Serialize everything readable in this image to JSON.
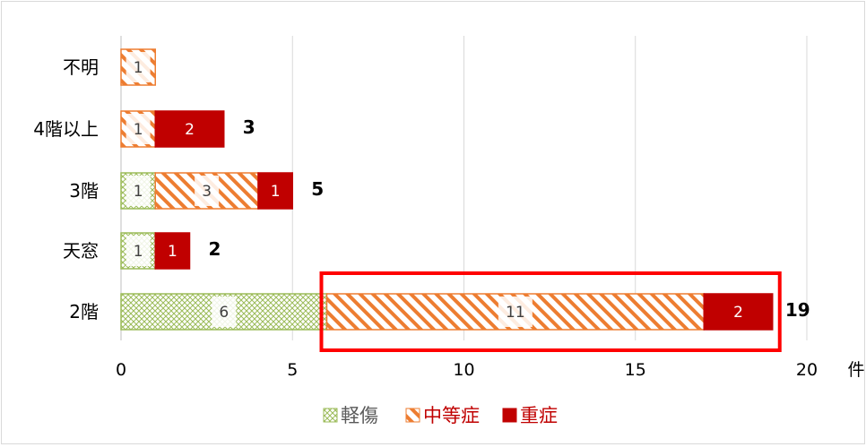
{
  "chart_data": {
    "type": "bar",
    "orientation": "horizontal",
    "stacked": true,
    "categories": [
      "2階",
      "天窓",
      "3階",
      "4階以上",
      "不明"
    ],
    "series": [
      {
        "name": "軽傷",
        "values": [
          6,
          1,
          1,
          0,
          0
        ],
        "color": "#9bbb59",
        "pattern": "crosshatch-green"
      },
      {
        "name": "中等症",
        "values": [
          11,
          0,
          3,
          1,
          1
        ],
        "color": "#ed7d31",
        "pattern": "diagonal-orange"
      },
      {
        "name": "重症",
        "values": [
          2,
          1,
          1,
          2,
          0
        ],
        "color": "#c00000",
        "pattern": "solid-red"
      }
    ],
    "totals": [
      "19",
      "2",
      "5",
      "3",
      ""
    ],
    "segment_labels": [
      [
        "6",
        "11",
        "2"
      ],
      [
        "1",
        "",
        "1"
      ],
      [
        "1",
        "3",
        "1"
      ],
      [
        "",
        "1",
        "2"
      ],
      [
        "",
        "1",
        ""
      ]
    ],
    "x_ticks": [
      "0",
      "5",
      "10",
      "15",
      "20"
    ],
    "xlim": [
      0,
      20
    ],
    "x_unit": "件",
    "grid": "vertical",
    "legend_position": "bottom",
    "highlight": {
      "category": "2階",
      "series": [
        "中等症",
        "重症"
      ],
      "color": "#ff0000"
    }
  },
  "colors": {
    "legend_text_default": "#595959",
    "legend_text_highlight": "#c00000",
    "segment_text_light": "#ffffff",
    "segment_text_dark": "#404040"
  }
}
